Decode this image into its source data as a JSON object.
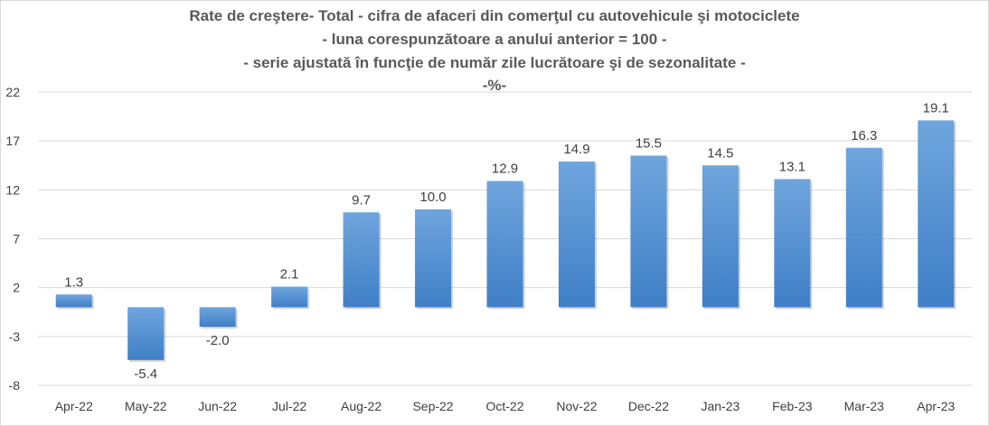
{
  "chart_data": {
    "type": "bar",
    "title_lines": [
      "Rate de creştere- Total - cifra de afaceri din comerţul cu autovehicule şi motociclete",
      "- luna corespunzătoare a anului anterior = 100 -",
      "- serie ajustată în funcţie de număr zile lucrătoare şi de sezonalitate -",
      "-%-"
    ],
    "categories": [
      "Apr-22",
      "May-22",
      "Jun-22",
      "Jul-22",
      "Aug-22",
      "Sep-22",
      "Oct-22",
      "Nov-22",
      "Dec-22",
      "Jan-23",
      "Feb-23",
      "Mar-23",
      "Apr-23"
    ],
    "values": [
      1.3,
      -5.4,
      -2.0,
      2.1,
      9.7,
      10.0,
      12.9,
      14.9,
      15.5,
      14.5,
      13.1,
      16.3,
      19.1
    ],
    "data_labels": [
      "1.3",
      "-5.4",
      "-2.0",
      "2.1",
      "9.7",
      "10.0",
      "12.9",
      "14.9",
      "15.5",
      "14.5",
      "13.1",
      "16.3",
      "19.1"
    ],
    "ylim": [
      -8,
      22
    ],
    "yticks": [
      -8,
      -3,
      2,
      7,
      12,
      17,
      22
    ],
    "ytick_labels": [
      "-8",
      "-3",
      "2",
      "7",
      "12",
      "17",
      "22"
    ],
    "grid": true,
    "legend": "none",
    "colors": {
      "bar_top": "#6fa5dd",
      "bar_bottom": "#3f7fc6",
      "grid": "#d9d9d9",
      "text": "#404040",
      "title": "#595959"
    }
  }
}
